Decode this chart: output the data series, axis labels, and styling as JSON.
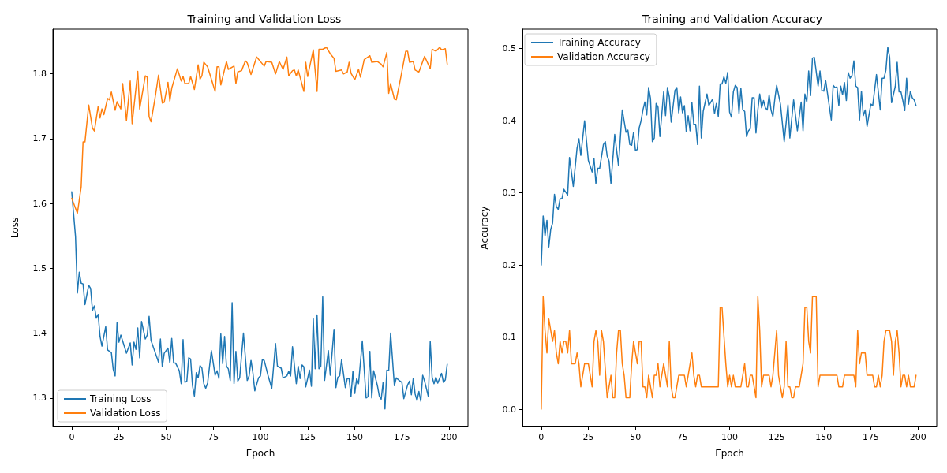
{
  "chart_data": [
    {
      "type": "line",
      "title": "Training and Validation Loss",
      "xlabel": "Epoch",
      "ylabel": "Loss",
      "legend": "bottom left",
      "grid": false,
      "xlim": [
        -10,
        210
      ],
      "xticks": [
        0,
        25,
        50,
        75,
        100,
        125,
        150,
        175,
        200
      ],
      "ylim": [
        1.256,
        1.869
      ],
      "yticks": [
        1.3,
        1.4,
        1.5,
        1.6,
        1.7,
        1.8
      ],
      "series": [
        {
          "name": "Training Loss",
          "color": "#1f77b4",
          "x": [
            0,
            2,
            3,
            4,
            5,
            6,
            7,
            9,
            10,
            11,
            12,
            13,
            14,
            15,
            16,
            18,
            19,
            21,
            22,
            23,
            24,
            25,
            26,
            29,
            31,
            32,
            33,
            34,
            35,
            36,
            37,
            39,
            40,
            41,
            42,
            44,
            46,
            47,
            48,
            49,
            51,
            52,
            53,
            54,
            55,
            57,
            58,
            59,
            60,
            61,
            62,
            63,
            64,
            65,
            66,
            67,
            68,
            69,
            70,
            71,
            72,
            74,
            76,
            77,
            78,
            79,
            80,
            81,
            82,
            83,
            84,
            85,
            86,
            87,
            88,
            89,
            91,
            93,
            94,
            95,
            96,
            97,
            99,
            100,
            101,
            102,
            104,
            106,
            108,
            109,
            111,
            112,
            114,
            115,
            116,
            117,
            119,
            120,
            121,
            122,
            123,
            124,
            126,
            127,
            128,
            129,
            130,
            131,
            132,
            133,
            134,
            136,
            137,
            139,
            140,
            141,
            142,
            143,
            145,
            146,
            147,
            148,
            149,
            150,
            151,
            152,
            154,
            156,
            157,
            158,
            159,
            160,
            162,
            163,
            164,
            165,
            166,
            167,
            168,
            169,
            171,
            172,
            174,
            175,
            176,
            178,
            179,
            180,
            181,
            182,
            183,
            184,
            185,
            186,
            187,
            189,
            190,
            191,
            192,
            193,
            194,
            196,
            197,
            198,
            199
          ],
          "values": [
            1.618,
            1.549,
            1.462,
            1.494,
            1.477,
            1.476,
            1.444,
            1.474,
            1.469,
            1.435,
            1.442,
            1.423,
            1.429,
            1.395,
            1.38,
            1.41,
            1.374,
            1.37,
            1.344,
            1.334,
            1.416,
            1.386,
            1.397,
            1.369,
            1.385,
            1.351,
            1.386,
            1.375,
            1.408,
            1.362,
            1.418,
            1.391,
            1.397,
            1.426,
            1.389,
            1.372,
            1.355,
            1.391,
            1.348,
            1.369,
            1.377,
            1.354,
            1.392,
            1.354,
            1.354,
            1.342,
            1.322,
            1.39,
            1.324,
            1.326,
            1.362,
            1.36,
            1.319,
            1.303,
            1.339,
            1.331,
            1.35,
            1.346,
            1.322,
            1.315,
            1.323,
            1.373,
            1.335,
            1.342,
            1.33,
            1.399,
            1.353,
            1.395,
            1.349,
            1.345,
            1.327,
            1.447,
            1.322,
            1.372,
            1.326,
            1.331,
            1.4,
            1.327,
            1.334,
            1.358,
            1.339,
            1.311,
            1.331,
            1.334,
            1.359,
            1.358,
            1.335,
            1.315,
            1.384,
            1.349,
            1.346,
            1.331,
            1.334,
            1.341,
            1.334,
            1.379,
            1.322,
            1.349,
            1.33,
            1.351,
            1.348,
            1.317,
            1.343,
            1.318,
            1.422,
            1.345,
            1.428,
            1.345,
            1.349,
            1.456,
            1.327,
            1.373,
            1.335,
            1.406,
            1.316,
            1.332,
            1.334,
            1.359,
            1.316,
            1.33,
            1.33,
            1.302,
            1.341,
            1.307,
            1.33,
            1.322,
            1.388,
            1.3,
            1.302,
            1.372,
            1.3,
            1.342,
            1.319,
            1.303,
            1.298,
            1.324,
            1.283,
            1.343,
            1.342,
            1.4,
            1.319,
            1.331,
            1.326,
            1.324,
            1.299,
            1.32,
            1.326,
            1.305,
            1.33,
            1.306,
            1.296,
            1.31,
            1.295,
            1.335,
            1.326,
            1.302,
            1.387,
            1.332,
            1.322,
            1.332,
            1.323,
            1.338,
            1.324,
            1.328,
            1.352
          ]
        },
        {
          "name": "Validation Loss",
          "color": "#ff7f0e",
          "x": [
            0,
            3,
            5,
            6,
            7,
            9,
            11,
            12,
            14,
            15,
            16,
            17,
            19,
            20,
            21,
            23,
            24,
            26,
            27,
            29,
            31,
            32,
            35,
            36,
            39,
            40,
            41,
            42,
            44,
            46,
            48,
            49,
            51,
            52,
            53,
            56,
            58,
            59,
            60,
            62,
            63,
            65,
            67,
            68,
            69,
            70,
            72,
            76,
            77,
            78,
            79,
            82,
            83,
            86,
            87,
            88,
            90,
            92,
            93,
            95,
            98,
            102,
            103,
            106,
            108,
            110,
            112,
            114,
            115,
            117,
            118,
            119,
            120,
            123,
            124,
            125,
            128,
            130,
            131,
            133,
            135,
            137,
            139,
            140,
            143,
            144,
            146,
            147,
            148,
            150,
            152,
            153,
            155,
            158,
            159,
            162,
            164,
            165,
            167,
            168,
            169,
            171,
            172,
            174,
            177,
            178,
            179,
            181,
            182,
            184,
            185,
            187,
            190,
            191,
            193,
            195,
            196,
            198,
            199
          ],
          "values": [
            1.608,
            1.585,
            1.626,
            1.695,
            1.695,
            1.752,
            1.716,
            1.712,
            1.75,
            1.732,
            1.746,
            1.737,
            1.762,
            1.76,
            1.772,
            1.744,
            1.757,
            1.746,
            1.785,
            1.728,
            1.789,
            1.723,
            1.804,
            1.746,
            1.797,
            1.795,
            1.734,
            1.726,
            1.76,
            1.798,
            1.755,
            1.756,
            1.787,
            1.758,
            1.778,
            1.808,
            1.789,
            1.796,
            1.785,
            1.785,
            1.796,
            1.776,
            1.814,
            1.792,
            1.797,
            1.818,
            1.811,
            1.773,
            1.811,
            1.811,
            1.783,
            1.819,
            1.807,
            1.812,
            1.785,
            1.803,
            1.805,
            1.82,
            1.817,
            1.799,
            1.826,
            1.812,
            1.819,
            1.818,
            1.8,
            1.819,
            1.807,
            1.826,
            1.797,
            1.805,
            1.806,
            1.797,
            1.806,
            1.773,
            1.818,
            1.796,
            1.837,
            1.773,
            1.838,
            1.838,
            1.841,
            1.831,
            1.824,
            1.804,
            1.806,
            1.8,
            1.803,
            1.818,
            1.801,
            1.791,
            1.807,
            1.795,
            1.822,
            1.828,
            1.818,
            1.819,
            1.815,
            1.811,
            1.833,
            1.77,
            1.785,
            1.761,
            1.76,
            1.789,
            1.835,
            1.835,
            1.818,
            1.819,
            1.806,
            1.803,
            1.811,
            1.827,
            1.808,
            1.838,
            1.835,
            1.841,
            1.837,
            1.839,
            1.815
          ]
        }
      ]
    },
    {
      "type": "line",
      "title": "Training and Validation Accuracy",
      "xlabel": "Epoch",
      "ylabel": "Accuracy",
      "legend": "top left",
      "grid": false,
      "xlim": [
        -10,
        210
      ],
      "xticks": [
        0,
        25,
        50,
        75,
        100,
        125,
        150,
        175,
        200
      ],
      "ylim": [
        -0.024,
        0.527
      ],
      "yticks": [
        {
          "value": 0,
          "label": "0.0"
        },
        0.1,
        0.2,
        0.3,
        0.4,
        0.5
      ],
      "series": [
        {
          "name": "Training Accuracy",
          "color": "#1f77b4",
          "x": [
            0,
            1,
            2,
            3,
            4,
            5,
            6,
            7,
            8,
            9,
            10,
            11,
            12,
            14,
            15,
            17,
            19,
            20,
            21,
            23,
            25,
            27,
            28,
            29,
            30,
            31,
            33,
            34,
            35,
            36,
            37,
            39,
            41,
            43,
            45,
            46,
            47,
            48,
            49,
            50,
            51,
            52,
            53,
            54,
            55,
            56,
            57,
            58,
            59,
            60,
            61,
            62,
            63,
            65,
            66,
            67,
            68,
            69,
            71,
            72,
            73,
            74,
            75,
            76,
            77,
            78,
            79,
            80,
            81,
            82,
            83,
            84,
            85,
            86,
            88,
            89,
            91,
            92,
            93,
            94,
            95,
            96,
            97,
            98,
            99,
            100,
            101,
            102,
            103,
            104,
            105,
            106,
            107,
            108,
            109,
            110,
            111,
            112,
            113,
            114,
            115,
            116,
            117,
            118,
            119,
            120,
            121,
            122,
            123,
            124,
            125,
            127,
            129,
            131,
            132,
            134,
            136,
            138,
            139,
            140,
            141,
            142,
            143,
            144,
            145,
            147,
            148,
            149,
            150,
            151,
            154,
            155,
            156,
            157,
            158,
            159,
            160,
            161,
            162,
            163,
            164,
            165,
            166,
            167,
            168,
            169,
            170,
            171,
            172,
            173,
            175,
            176,
            178,
            180,
            181,
            182,
            183,
            184,
            185,
            186,
            188,
            189,
            190,
            191,
            192,
            193,
            194,
            195,
            196,
            197,
            198,
            199
          ],
          "values": [
            0.2,
            0.268,
            0.24,
            0.262,
            0.225,
            0.249,
            0.258,
            0.298,
            0.281,
            0.277,
            0.292,
            0.292,
            0.305,
            0.297,
            0.349,
            0.309,
            0.362,
            0.375,
            0.352,
            0.4,
            0.345,
            0.329,
            0.348,
            0.313,
            0.334,
            0.334,
            0.367,
            0.371,
            0.351,
            0.344,
            0.313,
            0.381,
            0.338,
            0.415,
            0.384,
            0.387,
            0.367,
            0.366,
            0.384,
            0.359,
            0.36,
            0.39,
            0.4,
            0.415,
            0.426,
            0.408,
            0.446,
            0.431,
            0.371,
            0.376,
            0.424,
            0.419,
            0.378,
            0.44,
            0.407,
            0.446,
            0.433,
            0.398,
            0.442,
            0.446,
            0.411,
            0.433,
            0.411,
            0.421,
            0.385,
            0.407,
            0.386,
            0.425,
            0.395,
            0.395,
            0.367,
            0.448,
            0.376,
            0.413,
            0.437,
            0.421,
            0.43,
            0.41,
            0.424,
            0.406,
            0.451,
            0.451,
            0.461,
            0.452,
            0.467,
            0.412,
            0.405,
            0.44,
            0.449,
            0.446,
            0.41,
            0.445,
            0.415,
            0.413,
            0.378,
            0.386,
            0.389,
            0.432,
            0.432,
            0.383,
            0.415,
            0.437,
            0.418,
            0.428,
            0.418,
            0.415,
            0.436,
            0.415,
            0.406,
            0.43,
            0.449,
            0.423,
            0.371,
            0.422,
            0.376,
            0.429,
            0.386,
            0.426,
            0.386,
            0.437,
            0.426,
            0.469,
            0.435,
            0.487,
            0.488,
            0.448,
            0.469,
            0.442,
            0.441,
            0.456,
            0.401,
            0.449,
            0.446,
            0.447,
            0.421,
            0.448,
            0.436,
            0.453,
            0.428,
            0.467,
            0.459,
            0.463,
            0.483,
            0.448,
            0.446,
            0.401,
            0.441,
            0.407,
            0.415,
            0.392,
            0.423,
            0.421,
            0.464,
            0.415,
            0.459,
            0.459,
            0.47,
            0.502,
            0.488,
            0.425,
            0.448,
            0.481,
            0.44,
            0.44,
            0.428,
            0.414,
            0.459,
            0.423,
            0.441,
            0.432,
            0.429,
            0.421
          ]
        },
        {
          "name": "Validation Accuracy",
          "color": "#ff7f0e",
          "x": [
            0,
            1,
            2,
            3,
            4,
            6,
            7,
            8,
            9,
            10,
            11,
            12,
            13,
            14,
            15,
            16,
            18,
            19,
            20,
            21,
            23,
            25,
            27,
            28,
            29,
            30,
            31,
            32,
            33,
            35,
            37,
            38,
            39,
            40,
            41,
            42,
            43,
            44,
            45,
            47,
            48,
            49,
            51,
            52,
            53,
            54,
            55,
            56,
            57,
            59,
            60,
            61,
            62,
            63,
            65,
            67,
            68,
            69,
            70,
            71,
            73,
            76,
            77,
            80,
            81,
            82,
            83,
            84,
            85,
            94,
            95,
            96,
            98,
            99,
            100,
            101,
            102,
            103,
            106,
            108,
            109,
            110,
            111,
            112,
            114,
            115,
            116,
            117,
            118,
            121,
            122,
            123,
            125,
            126,
            127,
            128,
            129,
            130,
            131,
            132,
            133,
            134,
            135,
            137,
            139,
            140,
            141,
            142,
            143,
            144,
            146,
            147,
            148,
            157,
            158,
            160,
            161,
            166,
            167,
            168,
            169,
            170,
            172,
            173,
            176,
            177,
            178,
            179,
            180,
            181,
            182,
            183,
            185,
            186,
            187,
            188,
            189,
            190,
            191,
            192,
            193,
            194,
            195,
            196,
            198,
            199
          ],
          "values": [
            0,
            0.156,
            0.109,
            0.078,
            0.125,
            0.094,
            0.109,
            0.078,
            0.063,
            0.094,
            0.078,
            0.094,
            0.094,
            0.078,
            0.109,
            0.063,
            0.063,
            0.078,
            0.063,
            0.031,
            0.063,
            0.063,
            0.031,
            0.094,
            0.109,
            0.094,
            0.047,
            0.109,
            0.094,
            0.016,
            0.047,
            0.016,
            0.016,
            0.078,
            0.109,
            0.109,
            0.063,
            0.047,
            0.016,
            0.016,
            0.063,
            0.094,
            0.063,
            0.094,
            0.094,
            0.031,
            0.031,
            0.016,
            0.047,
            0.016,
            0.047,
            0.047,
            0.063,
            0.031,
            0.063,
            0.031,
            0.094,
            0.031,
            0.016,
            0.016,
            0.047,
            0.047,
            0.031,
            0.078,
            0.047,
            0.031,
            0.047,
            0.047,
            0.031,
            0.031,
            0.141,
            0.141,
            0.063,
            0.031,
            0.047,
            0.031,
            0.047,
            0.031,
            0.031,
            0.063,
            0.031,
            0.031,
            0.047,
            0.047,
            0.016,
            0.156,
            0.109,
            0.031,
            0.047,
            0.047,
            0.031,
            0.047,
            0.109,
            0.047,
            0.031,
            0.016,
            0.031,
            0.094,
            0.031,
            0.031,
            0.016,
            0.016,
            0.031,
            0.031,
            0.063,
            0.141,
            0.141,
            0.094,
            0.078,
            0.156,
            0.156,
            0.031,
            0.047,
            0.047,
            0.031,
            0.031,
            0.047,
            0.047,
            0.031,
            0.109,
            0.063,
            0.078,
            0.078,
            0.047,
            0.047,
            0.031,
            0.031,
            0.047,
            0.031,
            0.047,
            0.094,
            0.109,
            0.109,
            0.094,
            0.047,
            0.094,
            0.109,
            0.078,
            0.031,
            0.047,
            0.047,
            0.031,
            0.047,
            0.031,
            0.031,
            0.047
          ]
        }
      ]
    }
  ]
}
